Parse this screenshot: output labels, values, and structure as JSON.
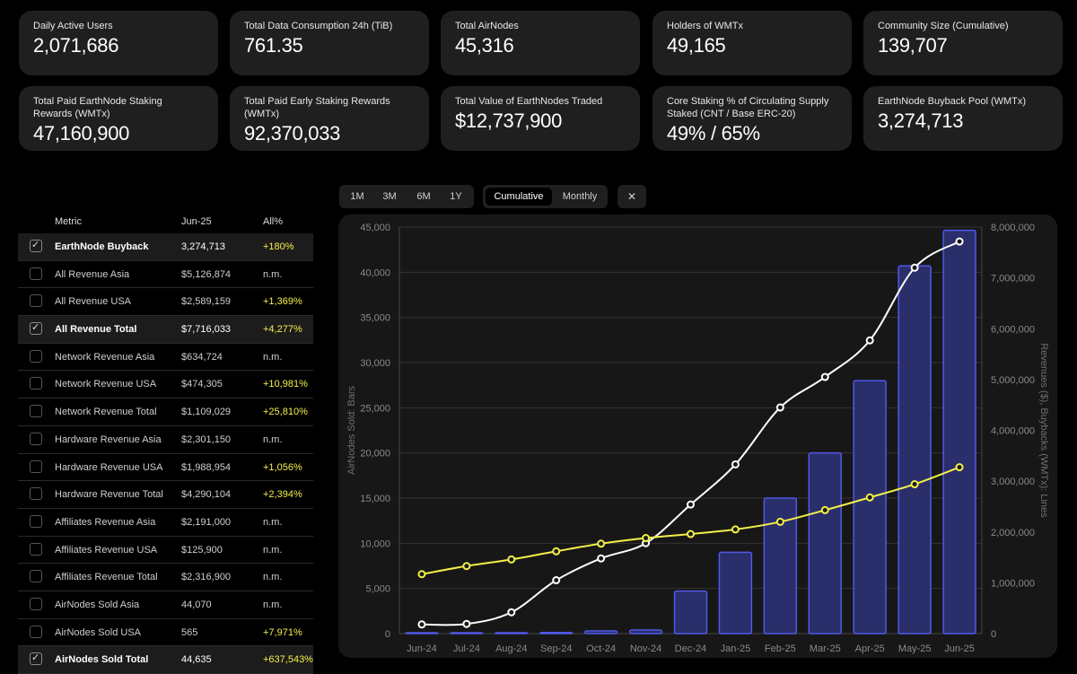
{
  "stats": [
    {
      "label": "Daily Active Users",
      "value": "2,071,686"
    },
    {
      "label": "Total Data Consumption 24h (TiB)",
      "value": "761.35"
    },
    {
      "label": "Total AirNodes",
      "value": "45,316"
    },
    {
      "label": "Holders of WMTx",
      "value": "49,165"
    },
    {
      "label": "Community Size (Cumulative)",
      "value": "139,707"
    },
    {
      "label": "Total Paid EarthNode Staking Rewards (WMTx)",
      "value": "47,160,900"
    },
    {
      "label": "Total Paid Early Staking Rewards (WMTx)",
      "value": "92,370,033"
    },
    {
      "label": "Total Value of EarthNodes Traded",
      "value": "$12,737,900"
    },
    {
      "label": "Core Staking % of Circulating Supply Staked (CNT / Base ERC-20)",
      "value": "49% / 65%"
    },
    {
      "label": "EarthNode Buyback Pool (WMTx)",
      "value": "3,274,713"
    }
  ],
  "controls": {
    "ranges": [
      "1M",
      "3M",
      "6M",
      "1Y"
    ],
    "modes": [
      "Cumulative",
      "Monthly"
    ],
    "active_mode": "Cumulative",
    "close": "✕"
  },
  "table": {
    "headers": {
      "metric": "Metric",
      "period": "Jun-25",
      "all": "All%"
    },
    "rows": [
      {
        "name": "EarthNode Buyback",
        "value": "3,274,713",
        "pct": "+180%",
        "checked": true
      },
      {
        "name": "All Revenue Asia",
        "value": "$5,126,874",
        "pct": "n.m.",
        "checked": false
      },
      {
        "name": "All Revenue USA",
        "value": "$2,589,159",
        "pct": "+1,369%",
        "checked": false
      },
      {
        "name": "All Revenue Total",
        "value": "$7,716,033",
        "pct": "+4,277%",
        "checked": true
      },
      {
        "name": "Network Revenue Asia",
        "value": "$634,724",
        "pct": "n.m.",
        "checked": false
      },
      {
        "name": "Network Revenue USA",
        "value": "$474,305",
        "pct": "+10,981%",
        "checked": false
      },
      {
        "name": "Network Revenue Total",
        "value": "$1,109,029",
        "pct": "+25,810%",
        "checked": false
      },
      {
        "name": "Hardware Revenue Asia",
        "value": "$2,301,150",
        "pct": "n.m.",
        "checked": false
      },
      {
        "name": "Hardware Revenue USA",
        "value": "$1,988,954",
        "pct": "+1,056%",
        "checked": false
      },
      {
        "name": "Hardware Revenue Total",
        "value": "$4,290,104",
        "pct": "+2,394%",
        "checked": false
      },
      {
        "name": "Affiliates Revenue Asia",
        "value": "$2,191,000",
        "pct": "n.m.",
        "checked": false
      },
      {
        "name": "Affiliates Revenue USA",
        "value": "$125,900",
        "pct": "n.m.",
        "checked": false
      },
      {
        "name": "Affiliates Revenue Total",
        "value": "$2,316,900",
        "pct": "n.m.",
        "checked": false
      },
      {
        "name": "AirNodes Sold Asia",
        "value": "44,070",
        "pct": "n.m.",
        "checked": false
      },
      {
        "name": "AirNodes Sold USA",
        "value": "565",
        "pct": "+7,971%",
        "checked": false
      },
      {
        "name": "AirNodes Sold Total",
        "value": "44,635",
        "pct": "+637,543%",
        "checked": true
      }
    ]
  },
  "colors": {
    "bar": "#2a2f6b",
    "bar_border": "#5158e8",
    "line_white": "#ffffff",
    "line_yellow": "#f3f04a",
    "positive": "#f3f04a"
  },
  "chart_data": {
    "type": "bar",
    "categories": [
      "Jun-24",
      "Jul-24",
      "Aug-24",
      "Sep-24",
      "Oct-24",
      "Nov-24",
      "Dec-24",
      "Jan-25",
      "Feb-25",
      "Mar-25",
      "Apr-25",
      "May-25",
      "Jun-25"
    ],
    "ylabel_left": "AirNodes Sold: Bars",
    "ylabel_right": "Revenues ($), Buybacks (WMTx): Lines",
    "ylim_left": [
      0,
      45000
    ],
    "ylim_right": [
      0,
      8000000
    ],
    "yticks_left": [
      "0",
      "5,000",
      "10,000",
      "15,000",
      "20,000",
      "25,000",
      "30,000",
      "35,000",
      "40,000",
      "45,000"
    ],
    "yticks_right": [
      "0",
      "1,000,000",
      "2,000,000",
      "3,000,000",
      "4,000,000",
      "5,000,000",
      "6,000,000",
      "7,000,000",
      "8,000,000"
    ],
    "bars": {
      "series_name": "AirNodes Sold Total",
      "values": [
        7,
        20,
        60,
        120,
        300,
        400,
        4700,
        9000,
        15000,
        20000,
        28000,
        40700,
        44635
      ]
    },
    "lines": [
      {
        "name": "All Revenue Total",
        "color": "white",
        "values": [
          180000,
          190000,
          420000,
          1050000,
          1480000,
          1780000,
          2540000,
          3330000,
          4450000,
          5050000,
          5770000,
          7200000,
          7716033
        ]
      },
      {
        "name": "EarthNode Buyback",
        "color": "yellow",
        "values": [
          1170000,
          1330000,
          1460000,
          1620000,
          1770000,
          1880000,
          1960000,
          2050000,
          2200000,
          2430000,
          2680000,
          2940000,
          3274713
        ]
      }
    ],
    "grid": true
  }
}
